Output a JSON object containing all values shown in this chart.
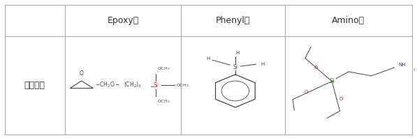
{
  "col_labels": [
    "Epoxy계",
    "Phenyl계",
    "Amino계"
  ],
  "row_label": "화학구조",
  "table_border_color": "#aaaaaa",
  "text_color": "#333333",
  "bg_color": "#ffffff",
  "header_fontsize": 9,
  "row_label_fontsize": 9,
  "chem_fontsize": 5.5,
  "chem_color_black": "#444444",
  "chem_color_red": "#cc2222",
  "chem_color_green": "#228822",
  "chem_color_blue": "#3333aa"
}
